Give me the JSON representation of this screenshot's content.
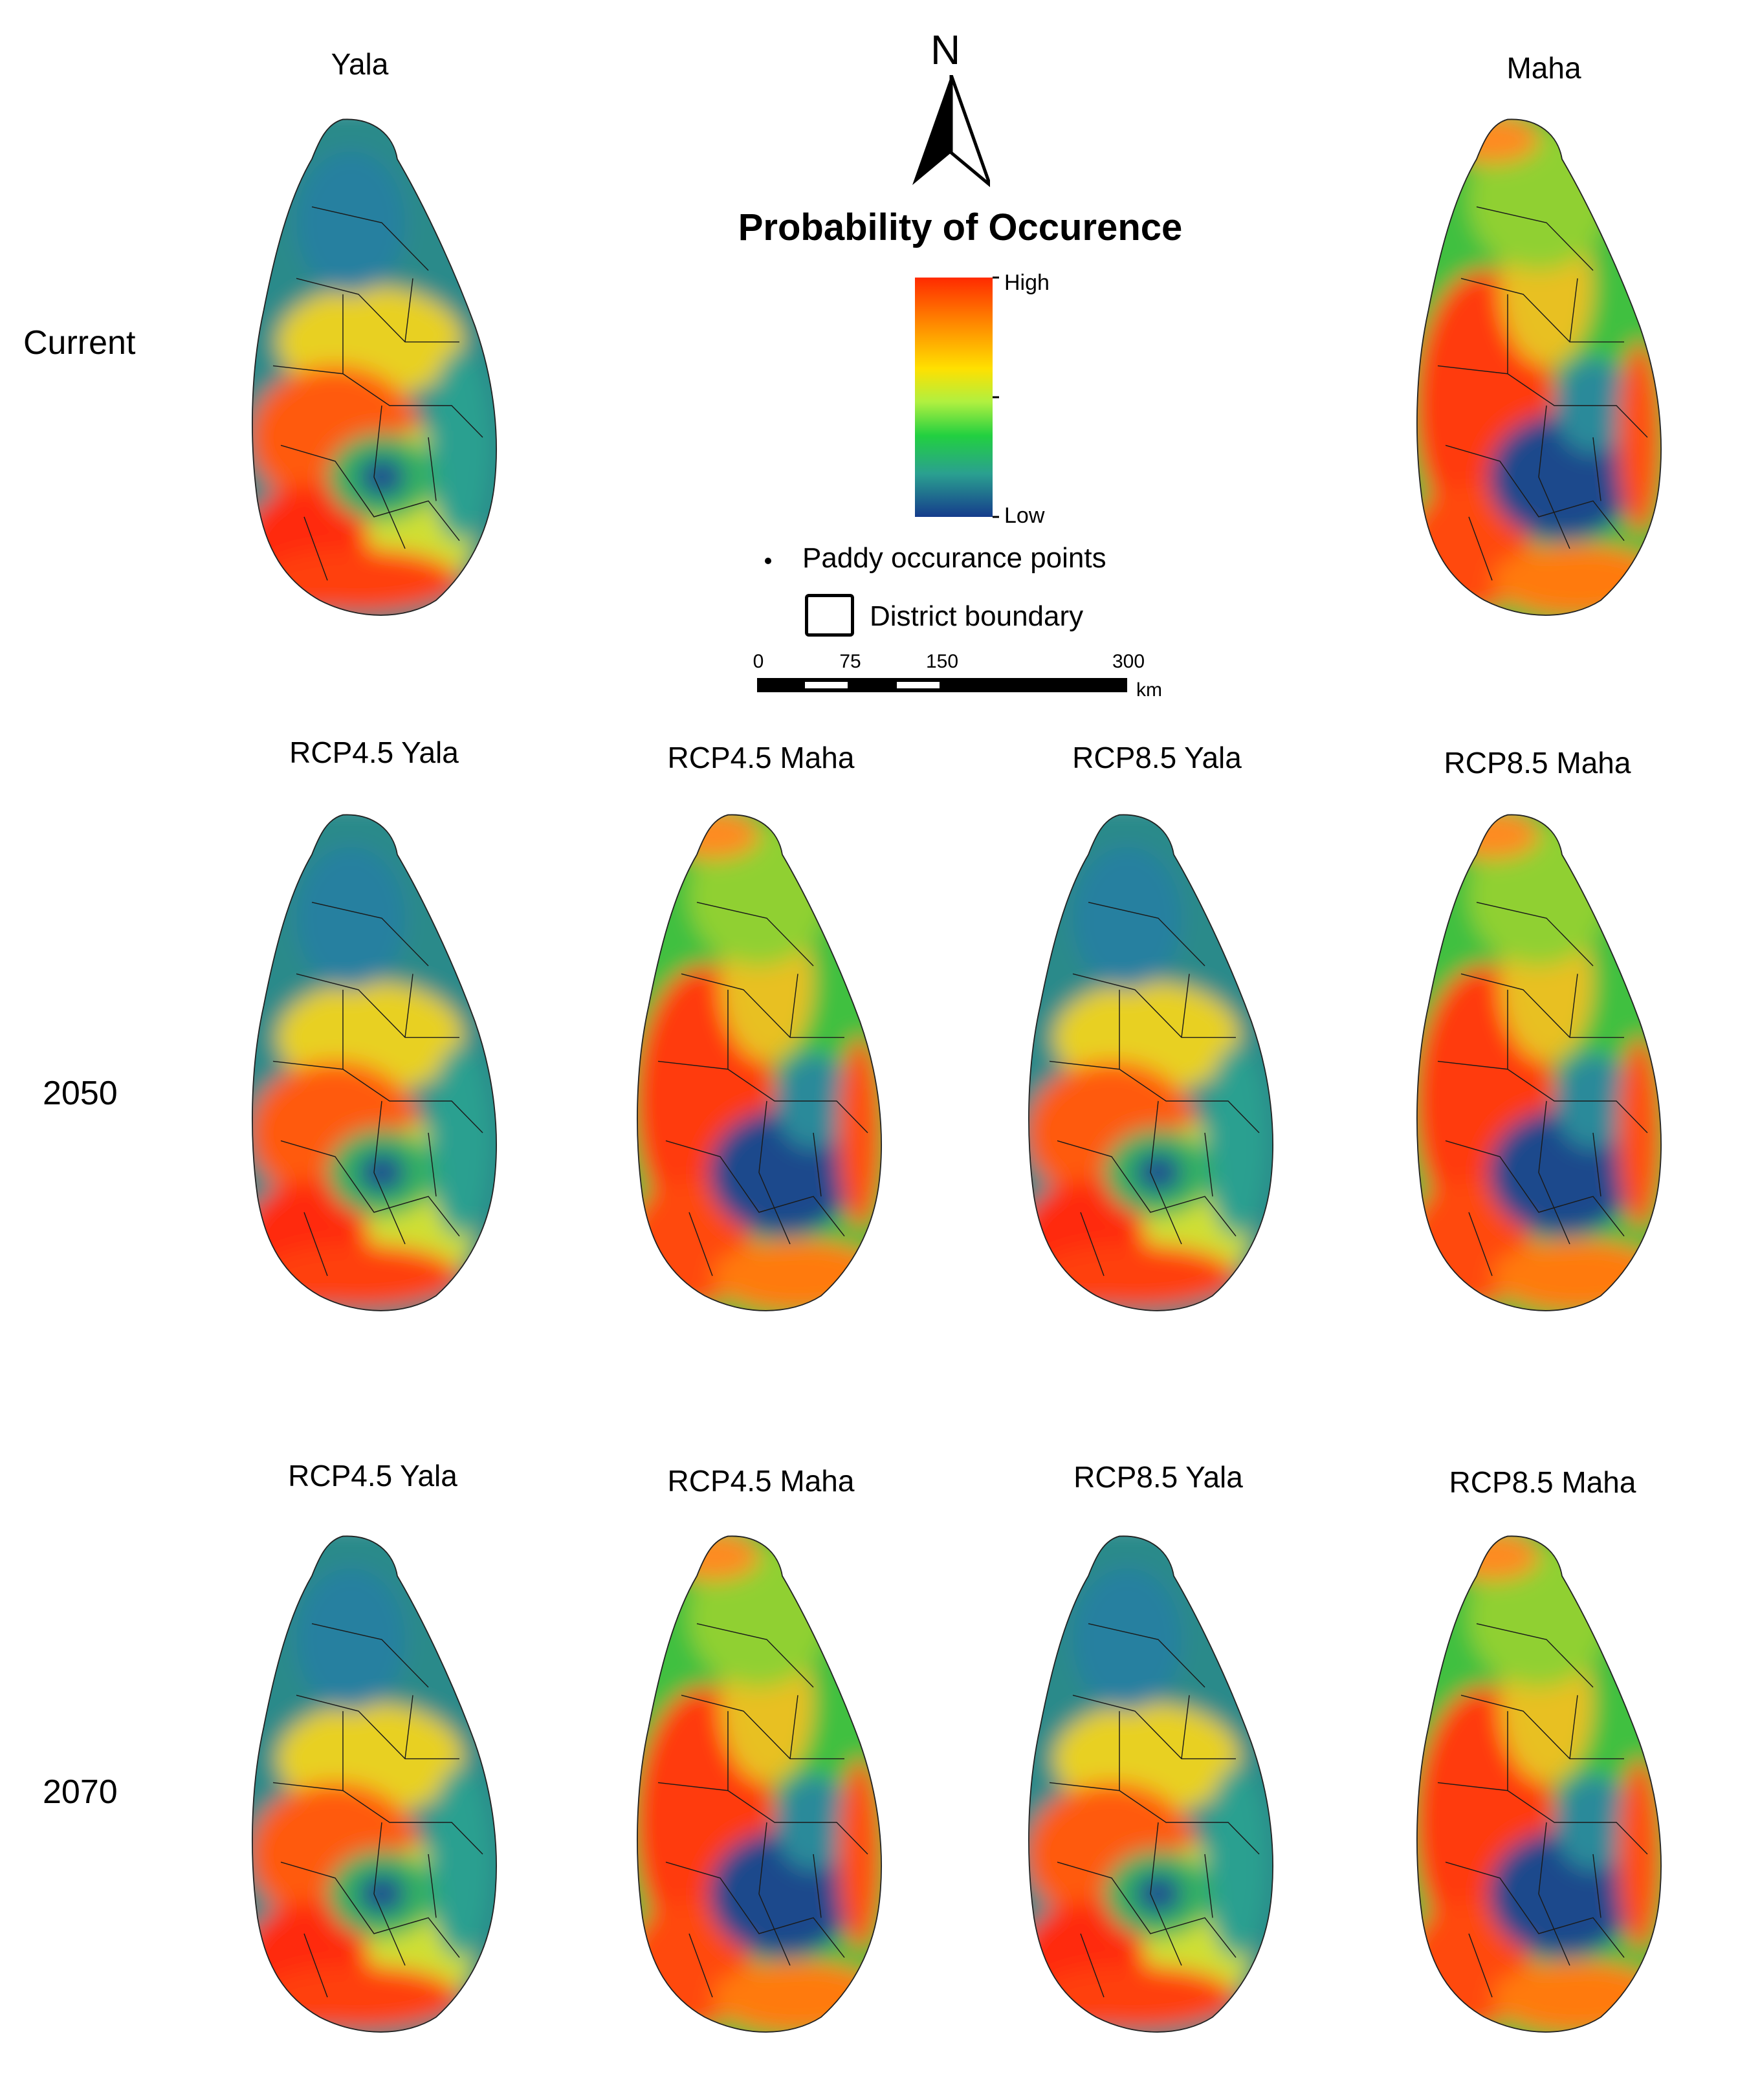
{
  "row_labels": {
    "current": "Current",
    "y2050": "2050",
    "y2070": "2070"
  },
  "current_titles": {
    "yala": "Yala",
    "maha": "Maha"
  },
  "future_titles": [
    "RCP4.5 Yala",
    "RCP4.5 Maha",
    "RCP8.5 Yala",
    "RCP8.5 Maha"
  ],
  "legend": {
    "north": "N",
    "title": "Probability of Occurence",
    "high": "High",
    "low": "Low",
    "points_label": "Paddy occurance points",
    "boundary_label": "District boundary",
    "ramp_colors": [
      "#ff2a00",
      "#ff8c00",
      "#ffe000",
      "#b0f040",
      "#22d040",
      "#2aa090",
      "#153c8c"
    ],
    "scale_ticks": [
      "0",
      "75",
      "150",
      "300"
    ],
    "scale_unit": "km"
  },
  "maps": [
    {
      "id": "current-yala",
      "pattern": "yala"
    },
    {
      "id": "current-maha",
      "pattern": "maha"
    },
    {
      "id": "2050-rcp45-yala",
      "pattern": "yala"
    },
    {
      "id": "2050-rcp45-maha",
      "pattern": "maha"
    },
    {
      "id": "2050-rcp85-yala",
      "pattern": "yala"
    },
    {
      "id": "2050-rcp85-maha",
      "pattern": "maha"
    },
    {
      "id": "2070-rcp45-yala",
      "pattern": "yala"
    },
    {
      "id": "2070-rcp45-maha",
      "pattern": "maha"
    },
    {
      "id": "2070-rcp85-yala",
      "pattern": "yala"
    },
    {
      "id": "2070-rcp85-maha",
      "pattern": "maha"
    }
  ]
}
